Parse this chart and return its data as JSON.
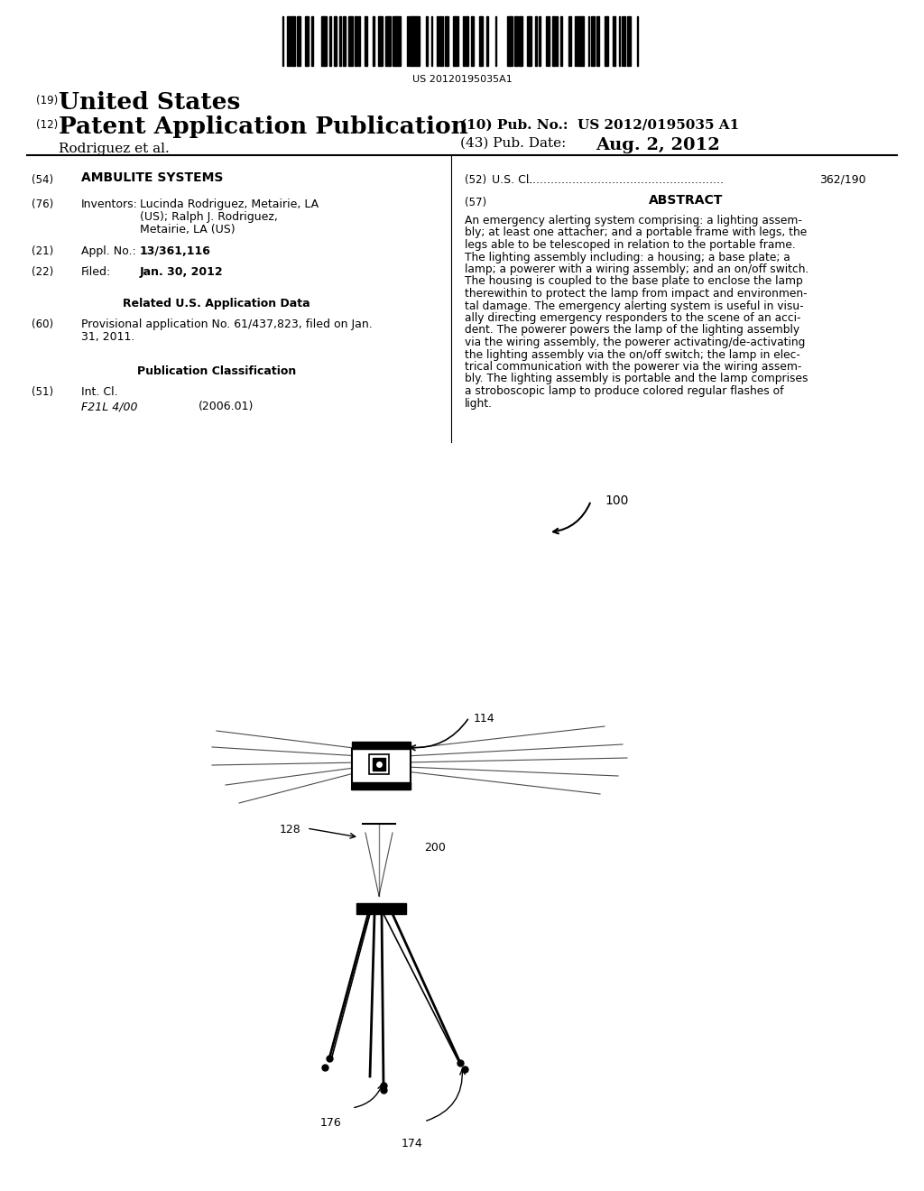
{
  "background_color": "#ffffff",
  "barcode_text": "US 20120195035A1",
  "header_19": "(19)",
  "header_19_text": "United States",
  "header_12": "(12)",
  "header_12_text": "Patent Application Publication",
  "header_inventor": "Rodriguez et al.",
  "header_10": "(10) Pub. No.:  US 2012/0195035 A1",
  "header_43": "(43) Pub. Date:",
  "header_date": "Aug. 2, 2012",
  "field_54_label": "(54)",
  "field_54_text": "AMBULITE SYSTEMS",
  "field_76_label": "(76)",
  "field_76_title": "Inventors:",
  "field_76_text": "Lucinda Rodriguez, Metairie, LA\n(US); Ralph J. Rodriguez,\nMetairie, LA (US)",
  "field_21_label": "(21)",
  "field_21_title": "Appl. No.:",
  "field_21_text": "13/361,116",
  "field_22_label": "(22)",
  "field_22_title": "Filed:",
  "field_22_text": "Jan. 30, 2012",
  "related_header": "Related U.S. Application Data",
  "field_60_label": "(60)",
  "field_60_text": "Provisional application No. 61/437,823, filed on Jan.\n31, 2011.",
  "pub_class_header": "Publication Classification",
  "field_51_label": "(51)",
  "field_51_title": "Int. Cl.",
  "field_51_class": "F21L 4/00",
  "field_51_year": "(2006.01)",
  "field_52_label": "(52)",
  "field_52_title": "U.S. Cl.",
  "field_52_text": "362/190",
  "field_57_label": "(57)",
  "field_57_title": "ABSTRACT",
  "abstract_text": "An emergency alerting system comprising: a lighting assem-\nbly; at least one attacher; and a portable frame with legs, the\nlegs able to be telescoped in relation to the portable frame.\nThe lighting assembly including: a housing; a base plate; a\nlamp; a powerer with a wiring assembly; and an on/off switch.\nThe housing is coupled to the base plate to enclose the lamp\ntherewithin to protect the lamp from impact and environmen-\ntal damage. The emergency alerting system is useful in visu-\nally directing emergency responders to the scene of an acci-\ndent. The powerer powers the lamp of the lighting assembly\nvia the wiring assembly, the powerer activating/de-activating\nthe lighting assembly via the on/off switch; the lamp in elec-\ntrical communication with the powerer via the wiring assem-\nbly. The lighting assembly is portable and the lamp comprises\na stroboscopic lamp to produce colored regular flashes of\nlight.",
  "label_100": "100",
  "label_114": "114",
  "label_128": "128",
  "label_200": "200",
  "label_176": "176",
  "label_174": "174"
}
